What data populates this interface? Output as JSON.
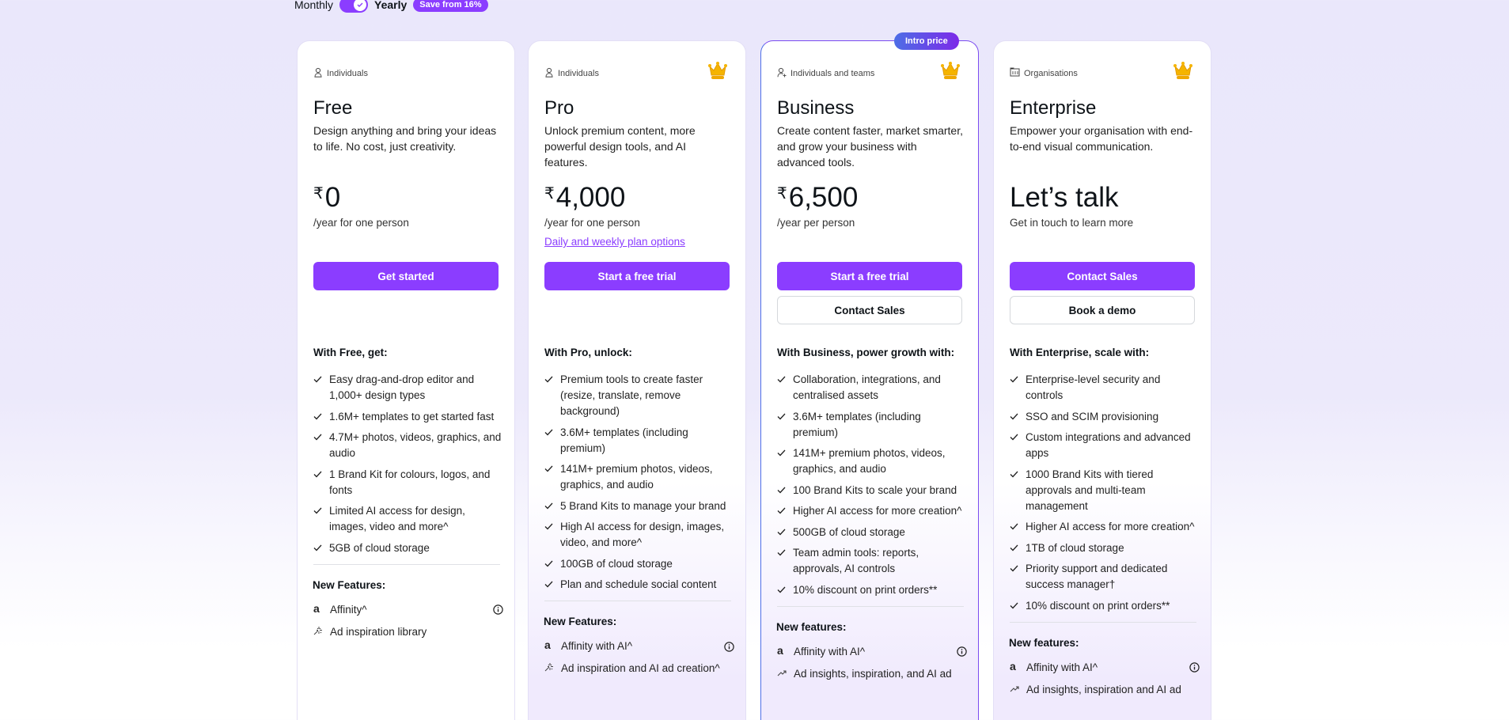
{
  "billing": {
    "monthly": "Monthly",
    "yearly": "Yearly",
    "yearly_selected": true,
    "save_badge": "Save from 16%"
  },
  "colors": {
    "accent": "#8b3dff",
    "crown": "#f5b400"
  },
  "plans": [
    {
      "audience": "Individuals",
      "audience_icon": "person-icon",
      "crown": false,
      "title": "Free",
      "description": "Design anything and bring your ideas to life. No cost, just creativity.",
      "currency": "₹",
      "price": "0",
      "per": "/year for one person",
      "primary_button": "Get started",
      "features_heading": "With Free, get:",
      "features": [
        "Easy drag-and-drop editor and 1,000+ design types",
        "1.6M+ templates to get started fast",
        "4.7M+ photos, videos, graphics, and audio",
        "1 Brand Kit for colours, logos, and fonts",
        "Limited AI access for design, images, video and more^",
        "5GB of cloud storage"
      ],
      "new_heading": "New Features:",
      "new_features": [
        {
          "icon": "affinity-icon",
          "label": "Affinity^",
          "info": true
        },
        {
          "icon": "sparkle-icon",
          "label": "Ad inspiration library"
        }
      ]
    },
    {
      "audience": "Individuals",
      "audience_icon": "person-icon",
      "crown": true,
      "title": "Pro",
      "description": "Unlock premium content, more powerful design tools, and AI features.",
      "currency": "₹",
      "price": "4,000",
      "per": "/year for one person",
      "link": "Daily and weekly plan options",
      "primary_button": "Start a free trial",
      "features_heading": "With Pro, unlock:",
      "features": [
        "Premium tools to create faster (resize, translate, remove background)",
        "3.6M+ templates (including premium)",
        "141M+ premium photos, videos, graphics, and audio",
        "5 Brand Kits to manage your brand",
        "High AI access for design, images, video, and more^",
        "100GB of cloud storage",
        "Plan and schedule social content"
      ],
      "new_heading": "New Features:",
      "new_features": [
        {
          "icon": "affinity-icon",
          "label": "Affinity with AI^",
          "info": true
        },
        {
          "icon": "sparkle-icon",
          "label": "Ad inspiration and AI ad creation^"
        }
      ]
    },
    {
      "audience": "Individuals and teams",
      "audience_icon": "team-icon",
      "crown": true,
      "badge": "Intro price",
      "title": "Business",
      "description": "Create content faster, market smarter, and grow your business with advanced tools.",
      "currency": "₹",
      "price": "6,500",
      "per": "/year per person",
      "primary_button": "Start a free trial",
      "secondary_button": "Contact Sales",
      "features_heading": "With Business, power growth with:",
      "features": [
        "Collaboration, integrations, and centralised assets",
        "3.6M+ templates (including premium)",
        "141M+ premium photos, videos, graphics, and audio",
        "100 Brand Kits to scale your brand",
        "Higher AI access for more creation^",
        "500GB of cloud storage",
        "Team admin tools: reports, approvals, AI controls",
        "10% discount on print orders**"
      ],
      "new_heading": "New features:",
      "new_features": [
        {
          "icon": "affinity-icon",
          "label": "Affinity with AI^",
          "info": true
        },
        {
          "icon": "trending-icon",
          "label": "Ad insights, inspiration, and AI ad"
        }
      ]
    },
    {
      "audience": "Organisations",
      "audience_icon": "building-icon",
      "crown": true,
      "title": "Enterprise",
      "description": "Empower your organisation with end-to-end visual communication.",
      "price": "Let’s talk",
      "per": "Get in touch to learn more",
      "primary_button": "Contact Sales",
      "secondary_button": "Book a demo",
      "features_heading": "With Enterprise, scale with:",
      "features": [
        "Enterprise-level security and controls",
        "SSO and SCIM provisioning",
        "Custom integrations and advanced apps",
        "1000 Brand Kits with tiered approvals and multi-team management",
        "Higher AI access for more creation^",
        "1TB of cloud storage",
        "Priority support and dedicated success manager†",
        "10% discount on print orders**"
      ],
      "new_heading": "New features:",
      "new_features": [
        {
          "icon": "affinity-icon",
          "label": "Affinity with AI^",
          "info": true
        },
        {
          "icon": "trending-icon",
          "label": "Ad insights, inspiration and AI ad"
        }
      ]
    }
  ]
}
